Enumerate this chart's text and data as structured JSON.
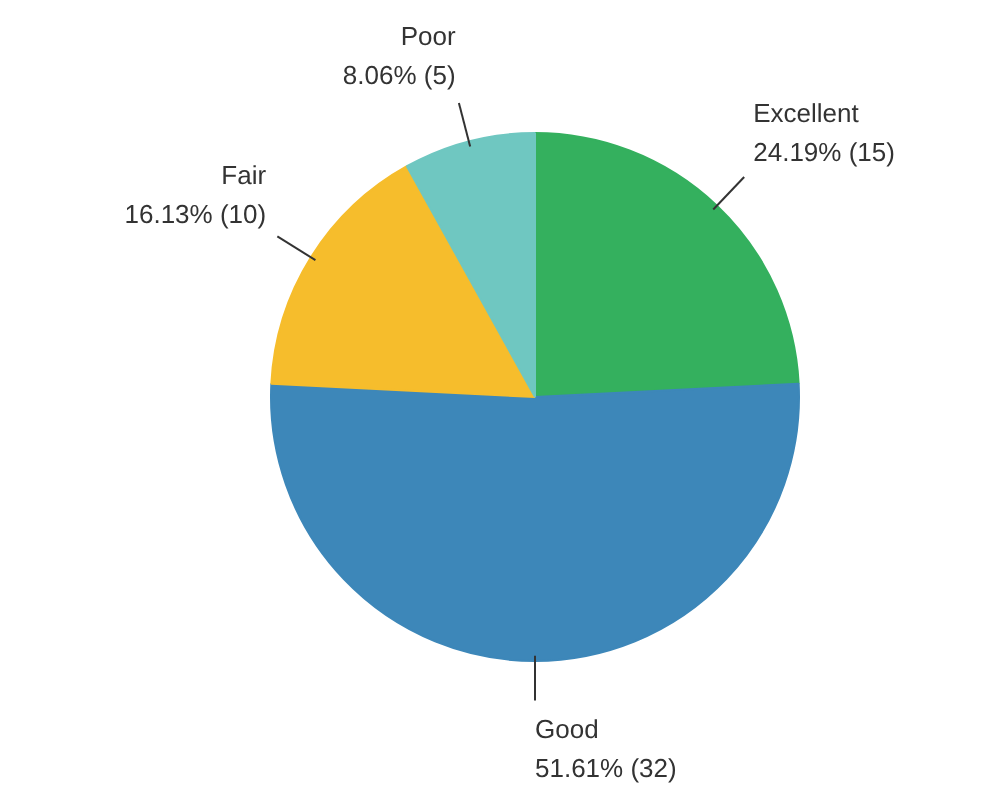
{
  "chart_data": {
    "type": "pie",
    "categories": [
      "Excellent",
      "Good",
      "Fair",
      "Poor"
    ],
    "values": [
      15,
      32,
      10,
      5
    ],
    "colors": [
      "#34b05e",
      "#3d87b9",
      "#f6bd2c",
      "#6fc7c1"
    ],
    "value_labels": [
      "24.19% (15)",
      "51.61% (32)",
      "16.13% (10)",
      "8.06% (5)"
    ]
  }
}
